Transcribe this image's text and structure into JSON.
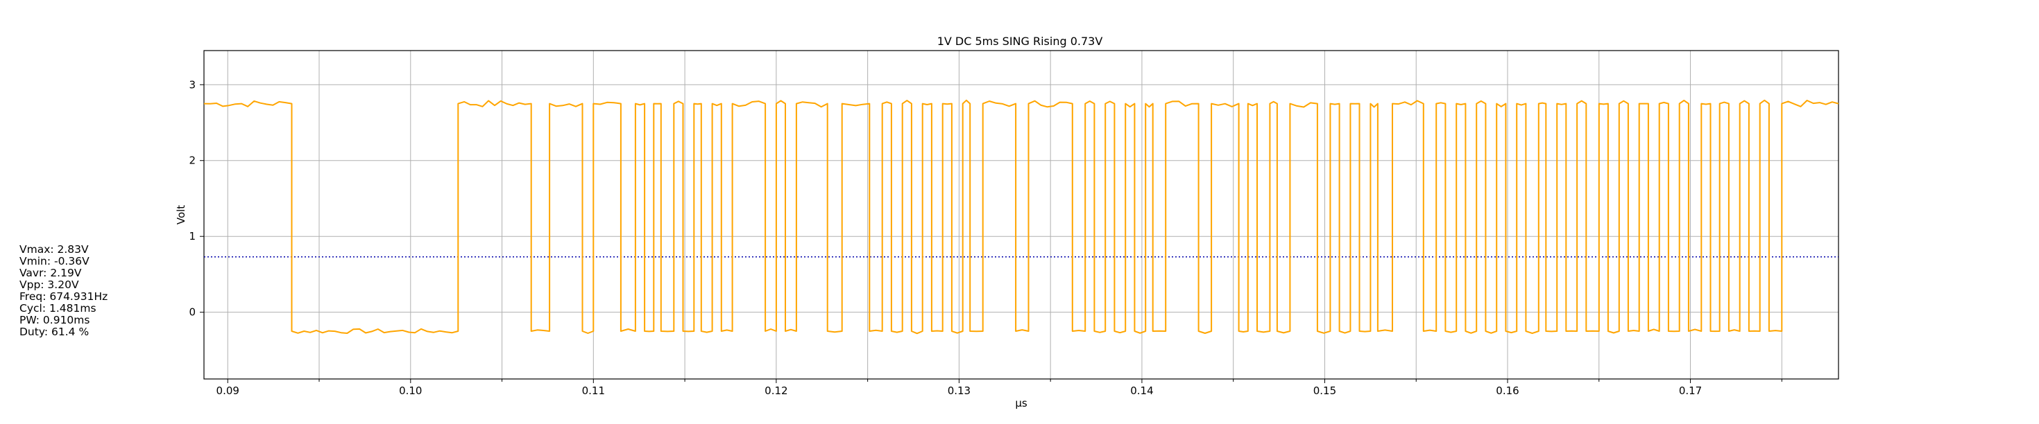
{
  "chart_data": {
    "type": "line",
    "title": "1V  DC  5ms  SING  Rising  0.73V",
    "xlabel": "µs",
    "ylabel": "Volt",
    "xlim": [
      0.0887,
      0.1781
    ],
    "ylim": [
      -0.88,
      3.45
    ],
    "x_ticks": [
      0.09,
      0.1,
      0.11,
      0.12,
      0.13,
      0.14,
      0.15,
      0.16,
      0.17
    ],
    "x_tick_labels": [
      "0.09",
      "0.10",
      "0.11",
      "0.12",
      "0.13",
      "0.14",
      "0.15",
      "0.16",
      "0.17"
    ],
    "x_minor_ticks": [
      0.095,
      0.105,
      0.115,
      0.125,
      0.135,
      0.145,
      0.155,
      0.165,
      0.175
    ],
    "y_ticks": [
      0,
      1,
      2,
      3
    ],
    "y_tick_labels": [
      "0",
      "1",
      "2",
      "3"
    ],
    "grid": true,
    "trigger_level": 0.73,
    "series": [
      {
        "color": "#ffa500",
        "high": 2.75,
        "low": -0.25,
        "high_segments": [
          [
            0.0887,
            0.0935
          ],
          [
            0.1026,
            0.1066
          ],
          [
            0.1076,
            0.1094
          ],
          [
            0.11,
            0.1115
          ],
          [
            0.1123,
            0.1128
          ],
          [
            0.1133,
            0.1137
          ],
          [
            0.1144,
            0.1149
          ],
          [
            0.1155,
            0.1159
          ],
          [
            0.1165,
            0.117
          ],
          [
            0.1176,
            0.1194
          ],
          [
            0.12,
            0.1205
          ],
          [
            0.1211,
            0.1228
          ],
          [
            0.1236,
            0.1251
          ],
          [
            0.1258,
            0.1263
          ],
          [
            0.1269,
            0.1274
          ],
          [
            0.128,
            0.1285
          ],
          [
            0.1291,
            0.1296
          ],
          [
            0.1302,
            0.1306
          ],
          [
            0.1313,
            0.1331
          ],
          [
            0.1338,
            0.1362
          ],
          [
            0.1369,
            0.1374
          ],
          [
            0.138,
            0.1385
          ],
          [
            0.1391,
            0.1396
          ],
          [
            0.1402,
            0.1406
          ],
          [
            0.1413,
            0.1431
          ],
          [
            0.1438,
            0.1453
          ],
          [
            0.1458,
            0.1463
          ],
          [
            0.147,
            0.1474
          ],
          [
            0.1481,
            0.1496
          ],
          [
            0.1503,
            0.1508
          ],
          [
            0.1514,
            0.1519
          ],
          [
            0.1525,
            0.1529
          ],
          [
            0.1537,
            0.1554
          ],
          [
            0.1561,
            0.1566
          ],
          [
            0.1572,
            0.1577
          ],
          [
            0.1583,
            0.1588
          ],
          [
            0.1594,
            0.1599
          ],
          [
            0.1605,
            0.161
          ],
          [
            0.1617,
            0.1621
          ],
          [
            0.1627,
            0.1632
          ],
          [
            0.1638,
            0.1643
          ],
          [
            0.165,
            0.1655
          ],
          [
            0.1661,
            0.1666
          ],
          [
            0.1672,
            0.1677
          ],
          [
            0.1683,
            0.1688
          ],
          [
            0.1694,
            0.1699
          ],
          [
            0.1706,
            0.1711
          ],
          [
            0.1716,
            0.1721
          ],
          [
            0.1727,
            0.1732
          ],
          [
            0.1738,
            0.1743
          ],
          [
            0.175,
            0.1781
          ]
        ]
      }
    ]
  },
  "measurements": [
    "Vmax: 2.83V",
    "Vmin: -0.36V",
    "Vavr: 2.19V",
    "Vpp: 3.20V",
    "Freq: 674.931Hz",
    "Cycl: 1.481ms",
    "PW: 0.910ms",
    "Duty: 61.4 %"
  ],
  "colors": {
    "trace": "#ffa500",
    "trigger": "#0000aa",
    "grid": "#b0b0b0"
  }
}
